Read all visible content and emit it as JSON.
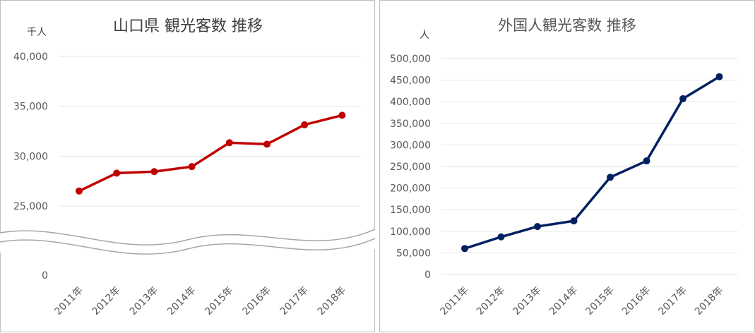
{
  "chart_data": [
    {
      "type": "line",
      "title": "山口県 観光客数 推移",
      "unit_label": "千人",
      "categories": [
        "2011年",
        "2012年",
        "2013年",
        "2014年",
        "2015年",
        "2016年",
        "2017年",
        "2018年"
      ],
      "series": [
        {
          "values": [
            26500,
            28300,
            28450,
            28950,
            31350,
            31200,
            33150,
            34100
          ],
          "color": "#c00000"
        }
      ],
      "ylim": [
        0,
        40000
      ],
      "axis_break": [
        0,
        25000
      ],
      "yticks": [
        0,
        25000,
        30000,
        35000,
        40000
      ],
      "ytick_labels": [
        "0",
        "25,000",
        "30,000",
        "35,000",
        "40,000"
      ],
      "grid": true,
      "legend": "none"
    },
    {
      "type": "line",
      "title": "外国人観光客数 推移",
      "unit_label": "人",
      "categories": [
        "2011年",
        "2012年",
        "2013年",
        "2014年",
        "2015年",
        "2016年",
        "2017年",
        "2018年"
      ],
      "series": [
        {
          "values": [
            60000,
            87000,
            111000,
            124000,
            225000,
            263000,
            407000,
            458000
          ],
          "color": "#002060"
        }
      ],
      "ylim": [
        0,
        500000
      ],
      "yticks": [
        0,
        50000,
        100000,
        150000,
        200000,
        250000,
        300000,
        350000,
        400000,
        450000,
        500000
      ],
      "ytick_labels": [
        "0",
        "50,000",
        "100,000",
        "150,000",
        "200,000",
        "250,000",
        "300,000",
        "350,000",
        "400,000",
        "450,000",
        "500,000"
      ],
      "grid": true,
      "legend": "none"
    }
  ]
}
